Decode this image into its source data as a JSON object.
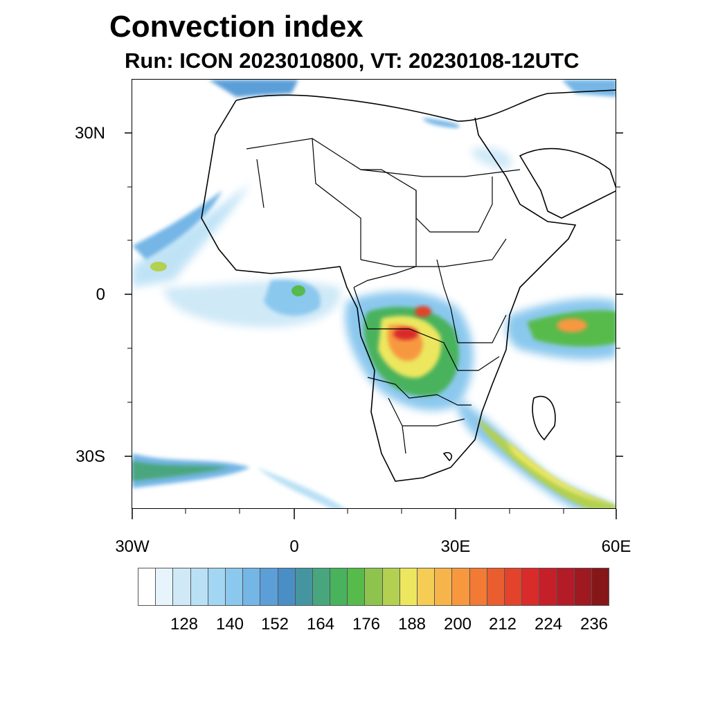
{
  "title": "Convection index",
  "subtitle": "Run: ICON 2023010800,  VT: 20230108-12UTC",
  "axes": {
    "lat_labels": [
      "30N",
      "0",
      "30S"
    ],
    "lon_labels": [
      "30W",
      "0",
      "30E",
      "60E"
    ]
  },
  "colorbar": {
    "labels": [
      "128",
      "140",
      "152",
      "164",
      "176",
      "188",
      "200",
      "212",
      "224",
      "236"
    ],
    "colors": [
      "#ffffff",
      "#e8f4fb",
      "#cfe9f7",
      "#b9e0f5",
      "#a2d6f3",
      "#8bc8ee",
      "#74b6e6",
      "#5c9fd8",
      "#4a8ec6",
      "#4595a0",
      "#48a67e",
      "#48b25d",
      "#57bb4c",
      "#8ec44e",
      "#b3d050",
      "#ece75e",
      "#f5cd55",
      "#f7b44a",
      "#f7983f",
      "#f27a35",
      "#ea5d2e",
      "#e2432a",
      "#d92b29",
      "#c51f29",
      "#b31b26",
      "#9e1920",
      "#861618"
    ]
  },
  "map": {
    "region": "Africa",
    "projection": "lat-lon"
  }
}
